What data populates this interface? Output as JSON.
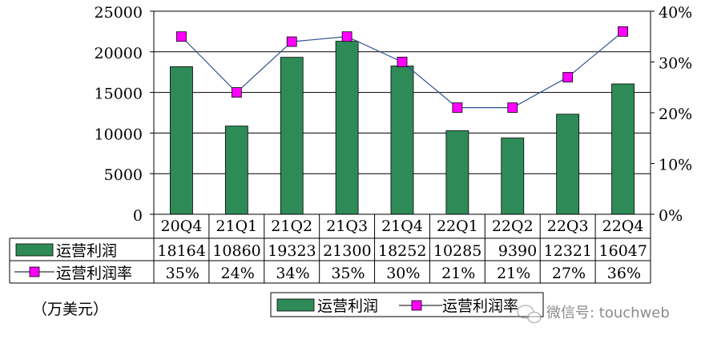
{
  "chart_data": {
    "type": "bar",
    "categories": [
      "20Q4",
      "21Q1",
      "21Q2",
      "21Q3",
      "21Q4",
      "22Q1",
      "22Q2",
      "22Q3",
      "22Q4"
    ],
    "series": [
      {
        "name": "运营利润",
        "type": "bar",
        "axis": "left",
        "color": "#2e8b57",
        "values": [
          18164,
          10860,
          19323,
          21300,
          18252,
          10285,
          9390,
          12321,
          16047
        ]
      },
      {
        "name": "运营利润率",
        "type": "line",
        "axis": "right",
        "color": "#ff00ff",
        "values": [
          35,
          24,
          34,
          35,
          30,
          21,
          21,
          27,
          36
        ],
        "labels": [
          "35%",
          "24%",
          "34%",
          "35%",
          "30%",
          "21%",
          "21%",
          "27%",
          "36%"
        ]
      }
    ],
    "y_left": {
      "min": 0,
      "max": 25000,
      "ticks": [
        "0",
        "5000",
        "10000",
        "15000",
        "20000",
        "25000"
      ]
    },
    "y_right": {
      "min": 0,
      "max": 40,
      "ticks": [
        "0%",
        "10%",
        "20%",
        "30%",
        "40%"
      ]
    },
    "unit_label": "（万美元）",
    "legend": {
      "placement": "bottom",
      "items": [
        "运营利润",
        "运营利润率"
      ]
    },
    "grid": true,
    "line_color": "#2f4f8f"
  },
  "watermark": {
    "text": "微信号: touchweb",
    "icon": "wechat-icon"
  }
}
